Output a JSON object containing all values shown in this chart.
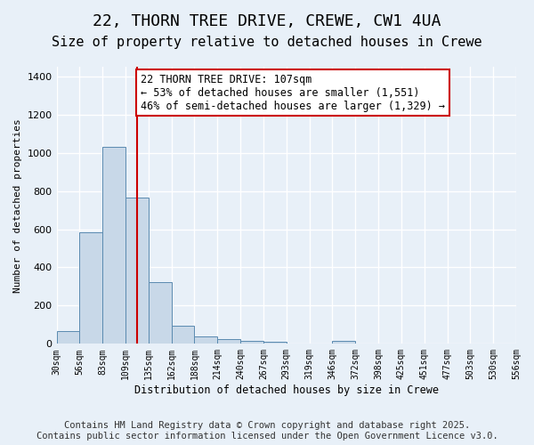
{
  "title1": "22, THORN TREE DRIVE, CREWE, CW1 4UA",
  "title2": "Size of property relative to detached houses in Crewe",
  "xlabel": "Distribution of detached houses by size in Crewe",
  "ylabel": "Number of detached properties",
  "bar_values": [
    65,
    585,
    1030,
    765,
    325,
    95,
    40,
    25,
    15,
    10,
    0,
    0,
    15,
    0,
    0,
    0,
    0,
    0,
    0,
    0
  ],
  "categories": [
    "30sqm",
    "56sqm",
    "83sqm",
    "109sqm",
    "135sqm",
    "162sqm",
    "188sqm",
    "214sqm",
    "240sqm",
    "267sqm",
    "293sqm",
    "319sqm",
    "346sqm",
    "372sqm",
    "398sqm",
    "425sqm",
    "451sqm",
    "477sqm",
    "503sqm",
    "530sqm"
  ],
  "xtick_extra": "556sqm",
  "bar_color": "#c8d8e8",
  "bar_edge_color": "#5a8ab0",
  "vline_x": 3,
  "vline_color": "#cc0000",
  "annotation_text": "22 THORN TREE DRIVE: 107sqm\n← 53% of detached houses are smaller (1,551)\n46% of semi-detached houses are larger (1,329) →",
  "annotation_box_color": "#ffffff",
  "annotation_box_edge": "#cc0000",
  "ylim": [
    0,
    1450
  ],
  "yticks": [
    0,
    200,
    400,
    600,
    800,
    1000,
    1200,
    1400
  ],
  "bg_color": "#e8f0f8",
  "plot_bg": "#e8f0f8",
  "grid_color": "#ffffff",
  "footnote": "Contains HM Land Registry data © Crown copyright and database right 2025.\nContains public sector information licensed under the Open Government Licence v3.0.",
  "title1_fontsize": 13,
  "title2_fontsize": 11,
  "annot_fontsize": 8.5,
  "footnote_fontsize": 7.5
}
